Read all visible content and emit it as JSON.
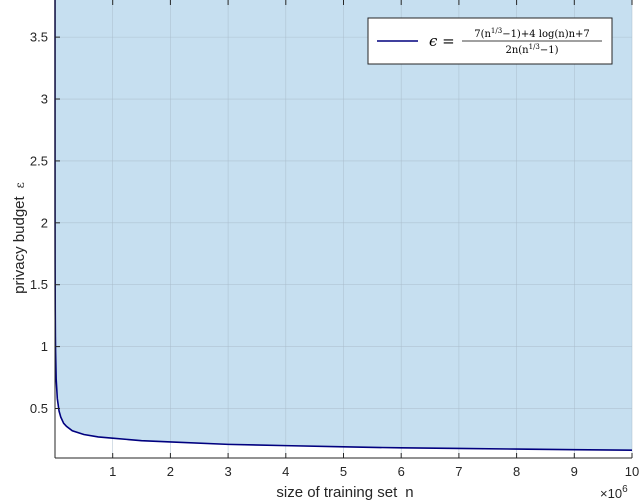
{
  "chart_data": {
    "type": "area",
    "title": "",
    "xlabel": "size of training set",
    "xlabel_symbol": "n",
    "ylabel": "privacy budget",
    "ylabel_symbol": "ε",
    "x_exponent_label": "×10",
    "x_exponent_power": "6",
    "xlim": [
      0,
      10
    ],
    "ylim": [
      0.1,
      3.8
    ],
    "x_ticks": [
      1,
      2,
      3,
      4,
      5,
      6,
      7,
      8,
      9,
      10
    ],
    "x_tick_labels": [
      "1",
      "2",
      "3",
      "4",
      "5",
      "6",
      "7",
      "8",
      "9",
      "10"
    ],
    "y_ticks": [
      0.5,
      1,
      1.5,
      2,
      2.5,
      3,
      3.5
    ],
    "y_tick_labels": [
      "0.5",
      "1",
      "1.5",
      "2",
      "2.5",
      "3",
      "3.5"
    ],
    "grid": true,
    "legend_position": "top-right",
    "fill_color": "#c6dff0",
    "line_color": "#00007f",
    "series": [
      {
        "name": "ε = (7(n^{1/3}−1)+4log(n)n+7) / (2n(n^{1/3}−1))",
        "x": [
          0.0005,
          0.001,
          0.002,
          0.004,
          0.007,
          0.01,
          0.02,
          0.04,
          0.07,
          0.1,
          0.15,
          0.2,
          0.3,
          0.5,
          0.75,
          1,
          1.5,
          2,
          3,
          4,
          5,
          6,
          7,
          8,
          9,
          10
        ],
        "y": [
          3.8,
          2.1,
          1.66,
          1.3,
          1.08,
          0.96,
          0.74,
          0.58,
          0.48,
          0.43,
          0.38,
          0.355,
          0.32,
          0.29,
          0.27,
          0.26,
          0.24,
          0.23,
          0.21,
          0.2,
          0.19,
          0.182,
          0.177,
          0.172,
          0.167,
          0.163
        ]
      }
    ],
    "legend": {
      "lhs": "ϵ =",
      "numerator": "7(n",
      "numerator_sup": "1/3",
      "numerator_rest": "−1)+4 log(n)n+7",
      "denominator": "2n(n",
      "denominator_sup": "1/3",
      "denominator_rest": "−1)"
    }
  }
}
